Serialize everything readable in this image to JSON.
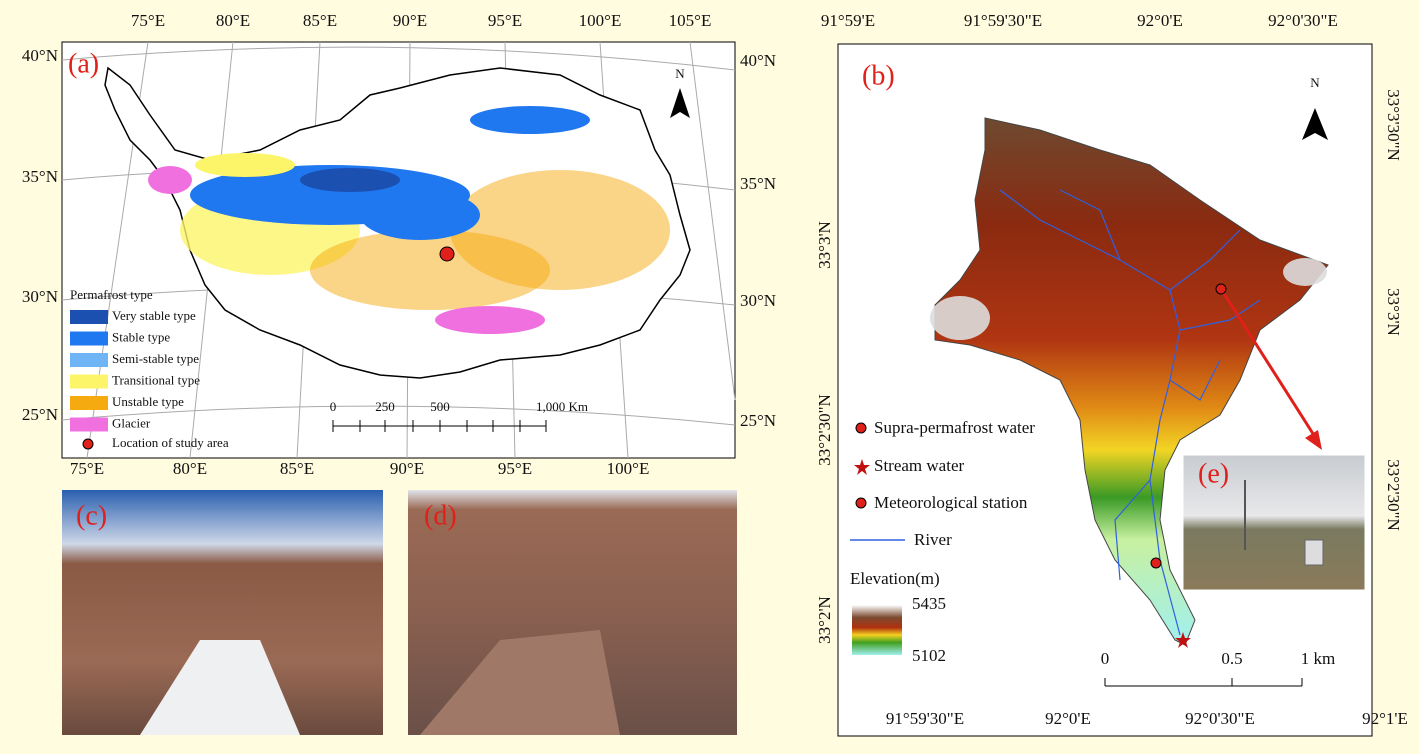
{
  "panel_a": {
    "label": "(a)",
    "north": "N",
    "top_lon": [
      "75°E",
      "80°E",
      "85°E",
      "90°E",
      "95°E",
      "100°E",
      "105°E"
    ],
    "bottom_lon": [
      "75°E",
      "80°E",
      "85°E",
      "90°E",
      "95°E",
      "100°E"
    ],
    "left_lat": [
      "40°N",
      "35°N",
      "30°N",
      "25°N"
    ],
    "right_lat": [
      "40°N",
      "35°N",
      "30°N",
      "25°N"
    ],
    "legend": {
      "title": "Permafrost type",
      "items": [
        {
          "name": "Very stable type",
          "color": "#1b4fb0"
        },
        {
          "name": "Stable type",
          "color": "#1f78f0"
        },
        {
          "name": "Semi-stable type",
          "color": "#6fb4f5"
        },
        {
          "name": "Transitional type",
          "color": "#fcf56a"
        },
        {
          "name": "Unstable type",
          "color": "#f5aa10"
        },
        {
          "name": "Glacier",
          "color": "#f070e0"
        }
      ],
      "location": "Location of study area"
    },
    "scale": [
      0,
      250,
      500,
      "1,000 Km"
    ]
  },
  "panel_b": {
    "label": "(b)",
    "north": "N",
    "top_lon": [
      "91°59'E",
      "91°59'30\"E",
      "92°0'E",
      "92°0'30\"E"
    ],
    "bottom_lon": [
      "91°59'30\"E",
      "92°0'E",
      "92°0'30\"E",
      "92°1'E"
    ],
    "left_lat": [
      "33°3'N",
      "33°2'30\"N",
      "33°2'N"
    ],
    "right_lat": [
      "33°3'30\"N",
      "33°3'N",
      "33°2'30\"N"
    ],
    "legend": {
      "items": [
        "Supra-permafrost water",
        "Stream water",
        "Meteorological station",
        "River"
      ],
      "elevation_title": "Elevation(m)",
      "elevation_max": 5435,
      "elevation_min": 5102
    },
    "scale": [
      0,
      0.5,
      "1 km"
    ]
  },
  "photos": {
    "c": "(c)",
    "d": "(d)",
    "e": "(e)"
  }
}
